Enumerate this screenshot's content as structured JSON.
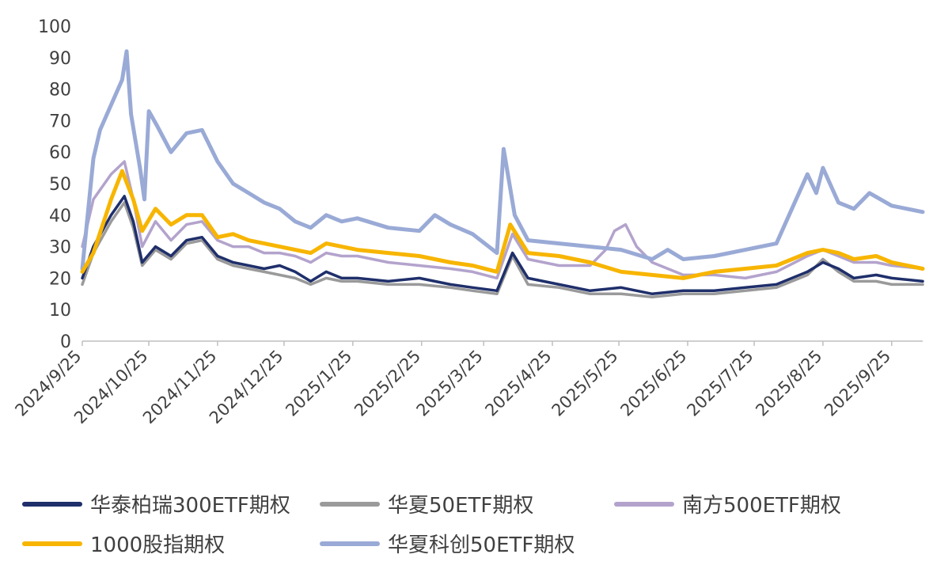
{
  "chart_data": {
    "type": "line",
    "title": "",
    "xlabel": "",
    "ylabel": "",
    "ylim": [
      0,
      100
    ],
    "y_ticks": [
      "0",
      "10",
      "20",
      "30",
      "40",
      "50",
      "60",
      "70",
      "80",
      "90",
      "100"
    ],
    "x_ticks": [
      "2024/9/25",
      "2024/10/25",
      "2024/11/25",
      "2024/12/25",
      "2025/1/25",
      "2025/2/25",
      "2025/3/25",
      "2025/4/25",
      "2025/5/25",
      "2025/6/25",
      "2025/7/25",
      "2025/8/25",
      "2025/9/25"
    ],
    "grid": false,
    "legend_position": "bottom",
    "series": [
      {
        "name": "华泰柏瑞300ETF期权",
        "color": "#1f2f6b",
        "points": [
          [
            "2024-09-25",
            20
          ],
          [
            "2024-09-30",
            30
          ],
          [
            "2024-10-08",
            40
          ],
          [
            "2024-10-14",
            46
          ],
          [
            "2024-10-18",
            38
          ],
          [
            "2024-10-22",
            25
          ],
          [
            "2024-10-28",
            30
          ],
          [
            "2024-11-04",
            27
          ],
          [
            "2024-11-11",
            32
          ],
          [
            "2024-11-18",
            33
          ],
          [
            "2024-11-25",
            27
          ],
          [
            "2024-12-02",
            25
          ],
          [
            "2024-12-09",
            24
          ],
          [
            "2024-12-16",
            23
          ],
          [
            "2024-12-23",
            24
          ],
          [
            "2024-12-30",
            22
          ],
          [
            "2025-01-06",
            19
          ],
          [
            "2025-01-13",
            22
          ],
          [
            "2025-01-20",
            20
          ],
          [
            "2025-01-27",
            20
          ],
          [
            "2025-02-10",
            19
          ],
          [
            "2025-02-24",
            20
          ],
          [
            "2025-03-10",
            18
          ],
          [
            "2025-03-20",
            17
          ],
          [
            "2025-03-31",
            16
          ],
          [
            "2025-04-07",
            28
          ],
          [
            "2025-04-14",
            20
          ],
          [
            "2025-04-28",
            18
          ],
          [
            "2025-05-12",
            16
          ],
          [
            "2025-05-26",
            17
          ],
          [
            "2025-06-09",
            15
          ],
          [
            "2025-06-23",
            16
          ],
          [
            "2025-07-07",
            16
          ],
          [
            "2025-07-21",
            17
          ],
          [
            "2025-08-04",
            18
          ],
          [
            "2025-08-18",
            22
          ],
          [
            "2025-08-25",
            25
          ],
          [
            "2025-09-01",
            23
          ],
          [
            "2025-09-08",
            20
          ],
          [
            "2025-09-18",
            21
          ],
          [
            "2025-09-25",
            20
          ],
          [
            "2025-10-09",
            19
          ]
        ]
      },
      {
        "name": "华夏50ETF期权",
        "color": "#9a9a9a",
        "points": [
          [
            "2024-09-25",
            18
          ],
          [
            "2024-09-30",
            28
          ],
          [
            "2024-10-08",
            38
          ],
          [
            "2024-10-14",
            44
          ],
          [
            "2024-10-18",
            36
          ],
          [
            "2024-10-22",
            24
          ],
          [
            "2024-10-28",
            29
          ],
          [
            "2024-11-04",
            26
          ],
          [
            "2024-11-11",
            31
          ],
          [
            "2024-11-18",
            32
          ],
          [
            "2024-11-25",
            26
          ],
          [
            "2024-12-02",
            24
          ],
          [
            "2024-12-09",
            23
          ],
          [
            "2024-12-16",
            22
          ],
          [
            "2024-12-23",
            21
          ],
          [
            "2024-12-30",
            20
          ],
          [
            "2025-01-06",
            18
          ],
          [
            "2025-01-13",
            20
          ],
          [
            "2025-01-20",
            19
          ],
          [
            "2025-01-27",
            19
          ],
          [
            "2025-02-10",
            18
          ],
          [
            "2025-02-24",
            18
          ],
          [
            "2025-03-10",
            17
          ],
          [
            "2025-03-20",
            16
          ],
          [
            "2025-03-31",
            15
          ],
          [
            "2025-04-07",
            27
          ],
          [
            "2025-04-14",
            18
          ],
          [
            "2025-04-28",
            17
          ],
          [
            "2025-05-12",
            15
          ],
          [
            "2025-05-26",
            15
          ],
          [
            "2025-06-09",
            14
          ],
          [
            "2025-06-23",
            15
          ],
          [
            "2025-07-07",
            15
          ],
          [
            "2025-07-21",
            16
          ],
          [
            "2025-08-04",
            17
          ],
          [
            "2025-08-18",
            21
          ],
          [
            "2025-08-25",
            26
          ],
          [
            "2025-09-01",
            22
          ],
          [
            "2025-09-08",
            19
          ],
          [
            "2025-09-18",
            19
          ],
          [
            "2025-09-25",
            18
          ],
          [
            "2025-10-09",
            18
          ]
        ]
      },
      {
        "name": "南方500ETF期权",
        "color": "#b3a3cc",
        "points": [
          [
            "2024-09-25",
            30
          ],
          [
            "2024-09-30",
            45
          ],
          [
            "2024-10-08",
            53
          ],
          [
            "2024-10-14",
            57
          ],
          [
            "2024-10-18",
            45
          ],
          [
            "2024-10-22",
            30
          ],
          [
            "2024-10-28",
            38
          ],
          [
            "2024-11-04",
            32
          ],
          [
            "2024-11-11",
            37
          ],
          [
            "2024-11-18",
            38
          ],
          [
            "2024-11-25",
            32
          ],
          [
            "2024-12-02",
            30
          ],
          [
            "2024-12-09",
            30
          ],
          [
            "2024-12-16",
            28
          ],
          [
            "2024-12-23",
            28
          ],
          [
            "2024-12-30",
            27
          ],
          [
            "2025-01-06",
            25
          ],
          [
            "2025-01-13",
            28
          ],
          [
            "2025-01-20",
            27
          ],
          [
            "2025-01-27",
            27
          ],
          [
            "2025-02-10",
            25
          ],
          [
            "2025-02-24",
            24
          ],
          [
            "2025-03-10",
            23
          ],
          [
            "2025-03-20",
            22
          ],
          [
            "2025-03-31",
            20
          ],
          [
            "2025-04-07",
            34
          ],
          [
            "2025-04-14",
            26
          ],
          [
            "2025-04-28",
            24
          ],
          [
            "2025-05-12",
            24
          ],
          [
            "2025-05-19",
            29
          ],
          [
            "2025-05-23",
            35
          ],
          [
            "2025-05-28",
            37
          ],
          [
            "2025-06-02",
            30
          ],
          [
            "2025-06-09",
            25
          ],
          [
            "2025-06-23",
            21
          ],
          [
            "2025-07-07",
            21
          ],
          [
            "2025-07-21",
            20
          ],
          [
            "2025-08-04",
            22
          ],
          [
            "2025-08-18",
            27
          ],
          [
            "2025-08-25",
            29
          ],
          [
            "2025-09-01",
            27
          ],
          [
            "2025-09-08",
            25
          ],
          [
            "2025-09-18",
            25
          ],
          [
            "2025-09-25",
            24
          ],
          [
            "2025-10-09",
            23
          ]
        ]
      },
      {
        "name": "1000股指期权",
        "color": "#f7b500",
        "points": [
          [
            "2024-09-25",
            22
          ],
          [
            "2024-09-30",
            28
          ],
          [
            "2024-10-08",
            45
          ],
          [
            "2024-10-13",
            54
          ],
          [
            "2024-10-18",
            45
          ],
          [
            "2024-10-22",
            35
          ],
          [
            "2024-10-28",
            42
          ],
          [
            "2024-11-04",
            37
          ],
          [
            "2024-11-11",
            40
          ],
          [
            "2024-11-18",
            40
          ],
          [
            "2024-11-25",
            33
          ],
          [
            "2024-12-02",
            34
          ],
          [
            "2024-12-09",
            32
          ],
          [
            "2024-12-16",
            31
          ],
          [
            "2024-12-23",
            30
          ],
          [
            "2024-12-30",
            29
          ],
          [
            "2025-01-06",
            28
          ],
          [
            "2025-01-13",
            31
          ],
          [
            "2025-01-20",
            30
          ],
          [
            "2025-01-27",
            29
          ],
          [
            "2025-02-10",
            28
          ],
          [
            "2025-02-24",
            27
          ],
          [
            "2025-03-10",
            25
          ],
          [
            "2025-03-20",
            24
          ],
          [
            "2025-03-31",
            22
          ],
          [
            "2025-04-06",
            37
          ],
          [
            "2025-04-14",
            28
          ],
          [
            "2025-04-28",
            27
          ],
          [
            "2025-05-12",
            25
          ],
          [
            "2025-05-26",
            22
          ],
          [
            "2025-06-09",
            21
          ],
          [
            "2025-06-23",
            20
          ],
          [
            "2025-07-07",
            22
          ],
          [
            "2025-07-21",
            23
          ],
          [
            "2025-08-04",
            24
          ],
          [
            "2025-08-18",
            28
          ],
          [
            "2025-08-25",
            29
          ],
          [
            "2025-09-01",
            28
          ],
          [
            "2025-09-08",
            26
          ],
          [
            "2025-09-18",
            27
          ],
          [
            "2025-09-25",
            25
          ],
          [
            "2025-10-09",
            23
          ]
        ]
      },
      {
        "name": "华夏科创50ETF期权",
        "color": "#9aaad6",
        "points": [
          [
            "2024-09-25",
            23
          ],
          [
            "2024-09-30",
            58
          ],
          [
            "2024-10-03",
            67
          ],
          [
            "2024-10-08",
            75
          ],
          [
            "2024-10-13",
            83
          ],
          [
            "2024-10-15",
            92
          ],
          [
            "2024-10-17",
            72
          ],
          [
            "2024-10-21",
            55
          ],
          [
            "2024-10-23",
            45
          ],
          [
            "2024-10-25",
            73
          ],
          [
            "2024-10-29",
            68
          ],
          [
            "2024-11-04",
            60
          ],
          [
            "2024-11-11",
            66
          ],
          [
            "2024-11-18",
            67
          ],
          [
            "2024-11-25",
            57
          ],
          [
            "2024-12-02",
            50
          ],
          [
            "2024-12-09",
            47
          ],
          [
            "2024-12-16",
            44
          ],
          [
            "2024-12-23",
            42
          ],
          [
            "2024-12-30",
            38
          ],
          [
            "2025-01-06",
            36
          ],
          [
            "2025-01-13",
            40
          ],
          [
            "2025-01-20",
            38
          ],
          [
            "2025-01-27",
            39
          ],
          [
            "2025-02-10",
            36
          ],
          [
            "2025-02-24",
            35
          ],
          [
            "2025-03-03",
            40
          ],
          [
            "2025-03-10",
            37
          ],
          [
            "2025-03-20",
            34
          ],
          [
            "2025-03-31",
            28
          ],
          [
            "2025-04-03",
            61
          ],
          [
            "2025-04-08",
            40
          ],
          [
            "2025-04-14",
            32
          ],
          [
            "2025-04-28",
            31
          ],
          [
            "2025-05-12",
            30
          ],
          [
            "2025-05-26",
            29
          ],
          [
            "2025-06-09",
            26
          ],
          [
            "2025-06-16",
            29
          ],
          [
            "2025-06-23",
            26
          ],
          [
            "2025-07-07",
            27
          ],
          [
            "2025-07-21",
            29
          ],
          [
            "2025-08-04",
            31
          ],
          [
            "2025-08-11",
            42
          ],
          [
            "2025-08-18",
            53
          ],
          [
            "2025-08-22",
            47
          ],
          [
            "2025-08-25",
            55
          ],
          [
            "2025-09-01",
            44
          ],
          [
            "2025-09-08",
            42
          ],
          [
            "2025-09-15",
            47
          ],
          [
            "2025-09-25",
            43
          ],
          [
            "2025-10-09",
            41
          ]
        ]
      }
    ]
  }
}
